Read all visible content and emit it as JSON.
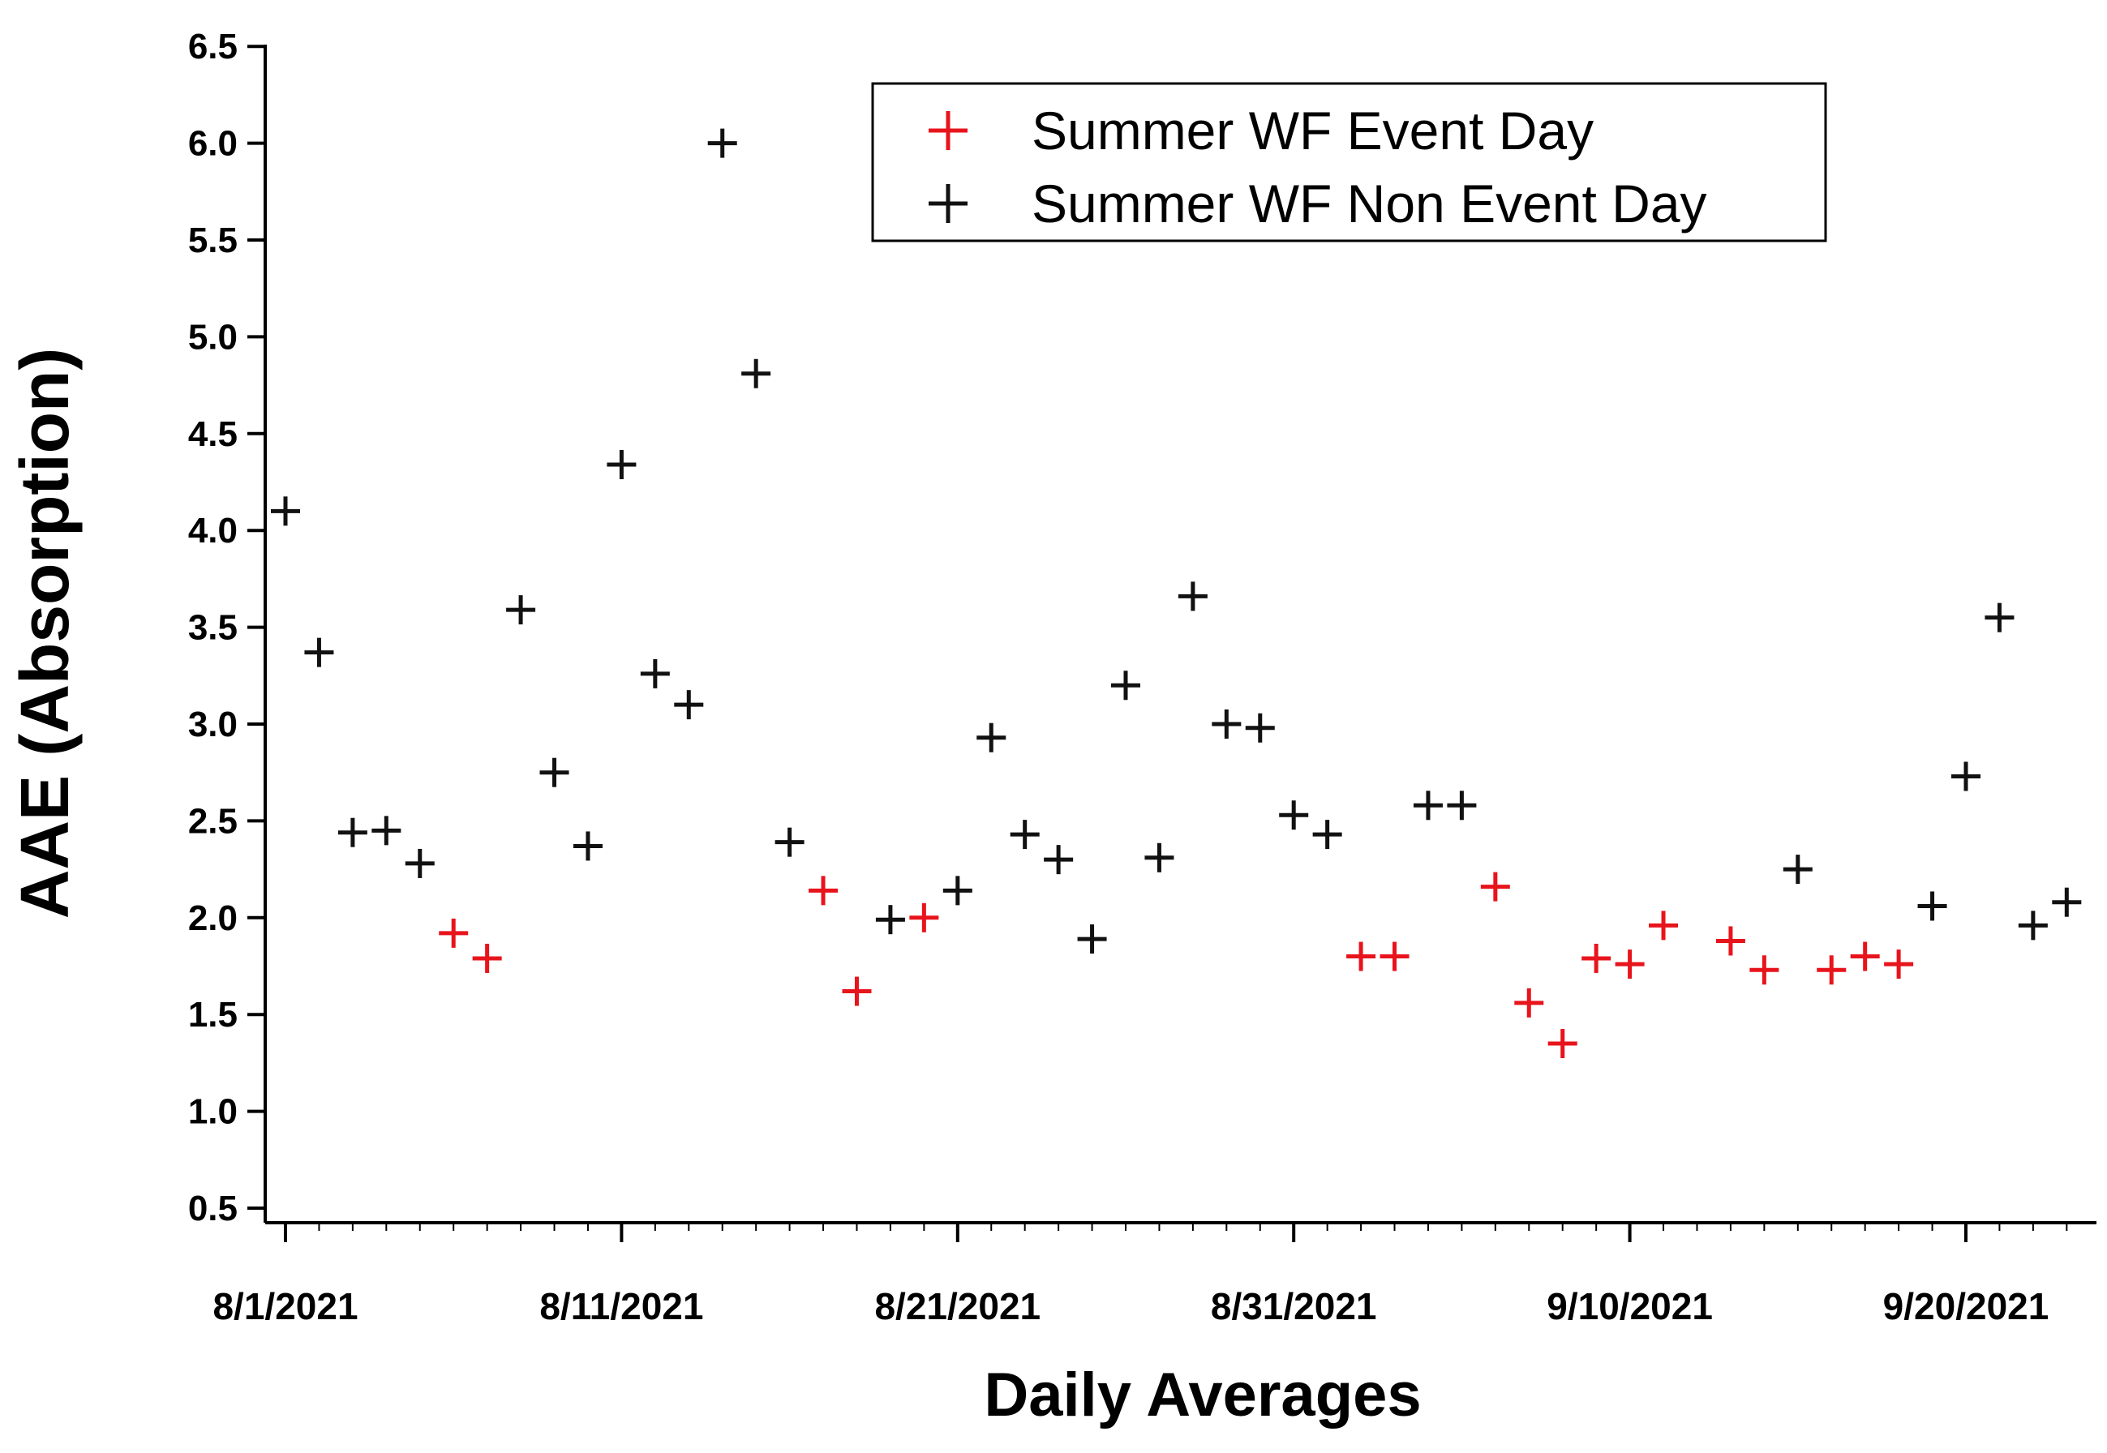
{
  "chart_data": {
    "type": "scatter",
    "title": "",
    "xlabel": "Daily Averages",
    "ylabel": "AAE (Absorption)",
    "ylim": [
      0.5,
      6.5
    ],
    "xlim_days": [
      0,
      53
    ],
    "y_ticks": [
      "0.5",
      "1.0",
      "1.5",
      "2.0",
      "2.5",
      "3.0",
      "3.5",
      "4.0",
      "4.5",
      "5.0",
      "5.5",
      "6.0",
      "6.5"
    ],
    "x_ticks": [
      {
        "day": 0,
        "label": "8/1/2021"
      },
      {
        "day": 10,
        "label": "8/11/2021"
      },
      {
        "day": 20,
        "label": "8/21/2021"
      },
      {
        "day": 30,
        "label": "8/31/2021"
      },
      {
        "day": 40,
        "label": "9/10/2021"
      },
      {
        "day": 50,
        "label": "9/20/2021"
      }
    ],
    "legend_position": "top-right",
    "series": [
      {
        "name": "Summer WF Event Day",
        "color": "#e8141c",
        "marker": "plus",
        "points": [
          {
            "day": 5,
            "date": "8/6/2021",
            "value": 1.92
          },
          {
            "day": 6,
            "date": "8/7/2021",
            "value": 1.79
          },
          {
            "day": 16,
            "date": "8/17/2021",
            "value": 2.14
          },
          {
            "day": 17,
            "date": "8/18/2021",
            "value": 1.62
          },
          {
            "day": 19,
            "date": "8/20/2021",
            "value": 2.0
          },
          {
            "day": 32,
            "date": "9/2/2021",
            "value": 1.8
          },
          {
            "day": 33,
            "date": "9/3/2021",
            "value": 1.8
          },
          {
            "day": 36,
            "date": "9/6/2021",
            "value": 2.16
          },
          {
            "day": 37,
            "date": "9/7/2021",
            "value": 1.56
          },
          {
            "day": 38,
            "date": "9/8/2021",
            "value": 1.35
          },
          {
            "day": 39,
            "date": "9/9/2021",
            "value": 1.79
          },
          {
            "day": 40,
            "date": "9/10/2021",
            "value": 1.76
          },
          {
            "day": 41,
            "date": "9/11/2021",
            "value": 1.96
          },
          {
            "day": 43,
            "date": "9/13/2021",
            "value": 1.88
          },
          {
            "day": 44,
            "date": "9/14/2021",
            "value": 1.73
          },
          {
            "day": 46,
            "date": "9/16/2021",
            "value": 1.73
          },
          {
            "day": 47,
            "date": "9/17/2021",
            "value": 1.8
          },
          {
            "day": 48,
            "date": "9/18/2021",
            "value": 1.76
          }
        ]
      },
      {
        "name": "Summer WF Non Event Day",
        "color": "#111111",
        "marker": "plus",
        "points": [
          {
            "day": 0,
            "date": "8/1/2021",
            "value": 4.1
          },
          {
            "day": 1,
            "date": "8/2/2021",
            "value": 3.37
          },
          {
            "day": 2,
            "date": "8/3/2021",
            "value": 2.44
          },
          {
            "day": 3,
            "date": "8/4/2021",
            "value": 2.45
          },
          {
            "day": 4,
            "date": "8/5/2021",
            "value": 2.28
          },
          {
            "day": 7,
            "date": "8/8/2021",
            "value": 3.59
          },
          {
            "day": 8,
            "date": "8/9/2021",
            "value": 2.75
          },
          {
            "day": 9,
            "date": "8/10/2021",
            "value": 2.37
          },
          {
            "day": 10,
            "date": "8/11/2021",
            "value": 4.34
          },
          {
            "day": 11,
            "date": "8/12/2021",
            "value": 3.26
          },
          {
            "day": 12,
            "date": "8/13/2021",
            "value": 3.1
          },
          {
            "day": 13,
            "date": "8/14/2021",
            "value": 6.0
          },
          {
            "day": 14,
            "date": "8/15/2021",
            "value": 4.81
          },
          {
            "day": 15,
            "date": "8/16/2021",
            "value": 2.39
          },
          {
            "day": 18,
            "date": "8/19/2021",
            "value": 1.99
          },
          {
            "day": 20,
            "date": "8/21/2021",
            "value": 2.14
          },
          {
            "day": 21,
            "date": "8/22/2021",
            "value": 2.93
          },
          {
            "day": 22,
            "date": "8/23/2021",
            "value": 2.43
          },
          {
            "day": 23,
            "date": "8/24/2021",
            "value": 2.3
          },
          {
            "day": 24,
            "date": "8/25/2021",
            "value": 1.89
          },
          {
            "day": 25,
            "date": "8/26/2021",
            "value": 3.2
          },
          {
            "day": 26,
            "date": "8/27/2021",
            "value": 2.31
          },
          {
            "day": 27,
            "date": "8/28/2021",
            "value": 3.66
          },
          {
            "day": 28,
            "date": "8/29/2021",
            "value": 3.0
          },
          {
            "day": 29,
            "date": "8/30/2021",
            "value": 2.98
          },
          {
            "day": 30,
            "date": "8/31/2021",
            "value": 2.53
          },
          {
            "day": 31,
            "date": "9/1/2021",
            "value": 2.43
          },
          {
            "day": 34,
            "date": "9/4/2021",
            "value": 2.58
          },
          {
            "day": 35,
            "date": "9/5/2021",
            "value": 2.58
          },
          {
            "day": 45,
            "date": "9/15/2021",
            "value": 2.25
          },
          {
            "day": 49,
            "date": "9/19/2021",
            "value": 2.06
          },
          {
            "day": 50,
            "date": "9/20/2021",
            "value": 2.73
          },
          {
            "day": 51,
            "date": "9/21/2021",
            "value": 3.55
          },
          {
            "day": 52,
            "date": "9/22/2021",
            "value": 1.96
          },
          {
            "day": 53,
            "date": "9/23/2021",
            "value": 2.08
          }
        ]
      }
    ]
  }
}
